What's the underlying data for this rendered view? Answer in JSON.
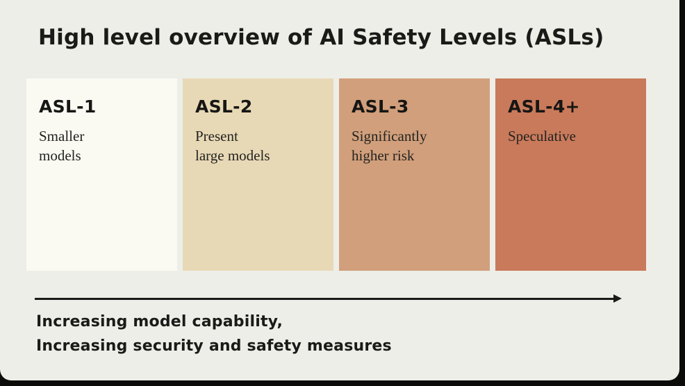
{
  "page": {
    "background": "#edeee7",
    "frame_color": "#0b0b09",
    "text_color": "#1a1a18"
  },
  "title": "High level overview of AI Safety Levels (ASLs)",
  "levels": [
    {
      "name": "ASL-1",
      "description": "Smaller\nmodels",
      "color": "#fafaf3"
    },
    {
      "name": "ASL-2",
      "description": "Present\nlarge models",
      "color": "#e8d9b6"
    },
    {
      "name": "ASL-3",
      "description": "Significantly\nhigher risk",
      "color": "#d19f7b"
    },
    {
      "name": "ASL-4+",
      "description": "Speculative",
      "color": "#c97a5b"
    }
  ],
  "axis_arrow": {
    "caption_line1": "Increasing model capability,",
    "caption_line2": "Increasing security and safety measures",
    "color": "#1a1a18"
  }
}
